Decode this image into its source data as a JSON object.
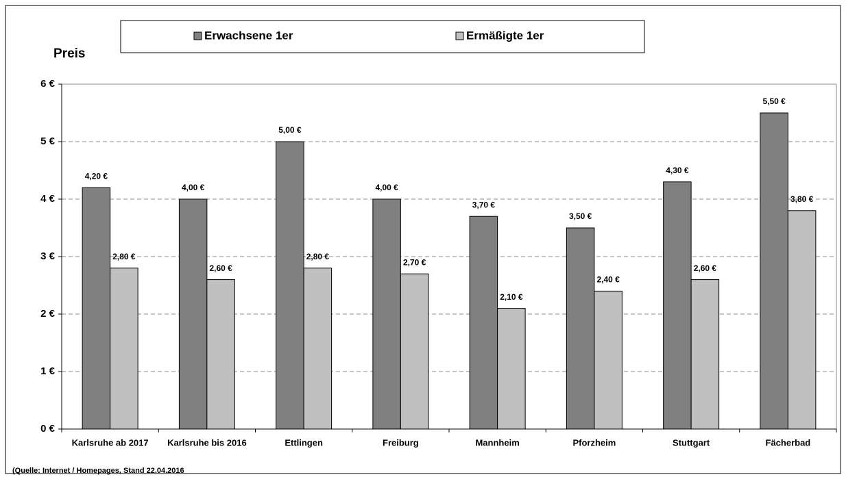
{
  "chart_data": {
    "type": "bar",
    "y_label": "Preis",
    "source": "(Quelle: Internet / Homepages, Stand 22.04.2016",
    "categories": [
      "Karlsruhe ab 2017",
      "Karlsruhe bis 2016",
      "Ettlingen",
      "Freiburg",
      "Mannheim",
      "Pforzheim",
      "Stuttgart",
      "Fächerbad"
    ],
    "series": [
      {
        "name": "Erwachsene 1er",
        "color": "#808080",
        "values": [
          4.2,
          4.0,
          5.0,
          4.0,
          3.7,
          3.5,
          4.3,
          5.5
        ],
        "value_labels": [
          "4,20 €",
          "4,00 €",
          "5,00 €",
          "4,00 €",
          "3,70 €",
          "3,50 €",
          "4,30 €",
          "5,50 €"
        ]
      },
      {
        "name": "Ermäßigte 1er",
        "color": "#c0c0c0",
        "values": [
          2.8,
          2.6,
          2.8,
          2.7,
          2.1,
          2.4,
          2.6,
          3.8
        ],
        "value_labels": [
          "2,80 €",
          "2,60 €",
          "2,80 €",
          "2,70 €",
          "2,10 €",
          "2,40 €",
          "2,60 €",
          "3,80 €"
        ]
      }
    ],
    "ylim": [
      0,
      6
    ],
    "yticks": [
      {
        "value": 0,
        "label": "0 €"
      },
      {
        "value": 1,
        "label": "1 €"
      },
      {
        "value": 2,
        "label": "2 €"
      },
      {
        "value": 3,
        "label": "3 €"
      },
      {
        "value": 4,
        "label": "4 €"
      },
      {
        "value": 5,
        "label": "5 €"
      },
      {
        "value": 6,
        "label": "6 €"
      }
    ],
    "grid": true
  }
}
